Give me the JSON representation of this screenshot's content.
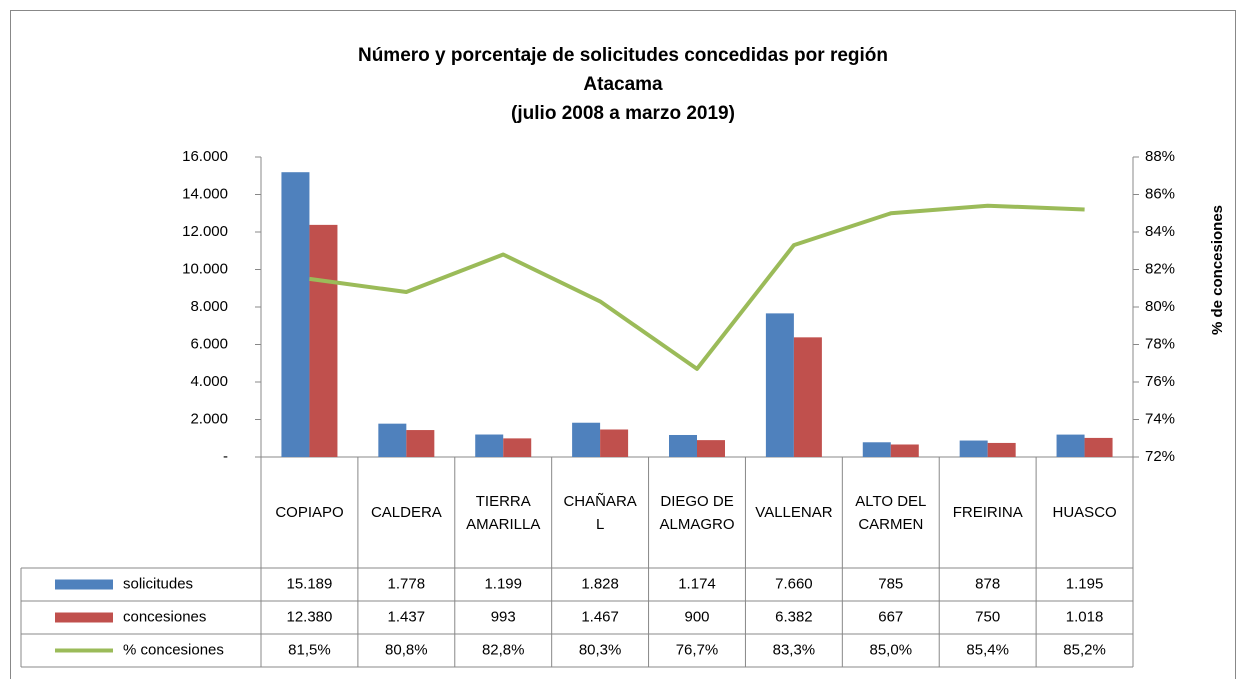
{
  "chart_data": {
    "type": "bar",
    "title": [
      "Número y porcentaje de solicitudes concedidas por región",
      "Atacama",
      "(julio 2008 a marzo 2019)"
    ],
    "y2_axis_label": "% de concesiones",
    "categories": [
      "COPIAPO",
      "CALDERA",
      "TIERRA AMARILLA",
      "CHAÑARAL",
      "DIEGO DE ALMAGRO",
      "VALLENAR",
      "ALTO DEL CARMEN",
      "FREIRINA",
      "HUASCO"
    ],
    "series": [
      {
        "name": "solicitudes",
        "type": "bar",
        "color": "#4f81bd",
        "values": [
          15189,
          1778,
          1199,
          1828,
          1174,
          7660,
          785,
          878,
          1195
        ],
        "value_labels": [
          "15.189",
          "1.778",
          "1.199",
          "1.828",
          "1.174",
          "7.660",
          "785",
          "878",
          "1.195"
        ]
      },
      {
        "name": "concesiones",
        "type": "bar",
        "color": "#c0504d",
        "values": [
          12380,
          1437,
          993,
          1467,
          900,
          6382,
          667,
          750,
          1018
        ],
        "value_labels": [
          "12.380",
          "1.437",
          "993",
          "1.467",
          "900",
          "6.382",
          "667",
          "750",
          "1.018"
        ]
      },
      {
        "name": "% concesiones",
        "type": "line",
        "axis": "y2",
        "color": "#9bbb59",
        "values": [
          81.5,
          80.8,
          82.8,
          80.3,
          76.7,
          83.3,
          85.0,
          85.4,
          85.2
        ],
        "value_labels": [
          "81,5%",
          "80,8%",
          "82,8%",
          "80,3%",
          "76,7%",
          "83,3%",
          "85,0%",
          "85,4%",
          "85,2%"
        ]
      }
    ],
    "ylim": [
      0,
      16000
    ],
    "yticks": [
      {
        "value": 0,
        "label": "-"
      },
      {
        "value": 2000,
        "label": "2.000"
      },
      {
        "value": 4000,
        "label": "4.000"
      },
      {
        "value": 6000,
        "label": "6.000"
      },
      {
        "value": 8000,
        "label": "8.000"
      },
      {
        "value": 10000,
        "label": "10.000"
      },
      {
        "value": 12000,
        "label": "12.000"
      },
      {
        "value": 14000,
        "label": "14.000"
      },
      {
        "value": 16000,
        "label": "16.000"
      }
    ],
    "y2lim": [
      72,
      88
    ],
    "y2ticks": [
      {
        "value": 72,
        "label": "72%"
      },
      {
        "value": 74,
        "label": "74%"
      },
      {
        "value": 76,
        "label": "76%"
      },
      {
        "value": 78,
        "label": "78%"
      },
      {
        "value": 80,
        "label": "80%"
      },
      {
        "value": 82,
        "label": "82%"
      },
      {
        "value": 84,
        "label": "84%"
      },
      {
        "value": 86,
        "label": "86%"
      },
      {
        "value": 88,
        "label": "88%"
      }
    ],
    "data_table": true
  }
}
